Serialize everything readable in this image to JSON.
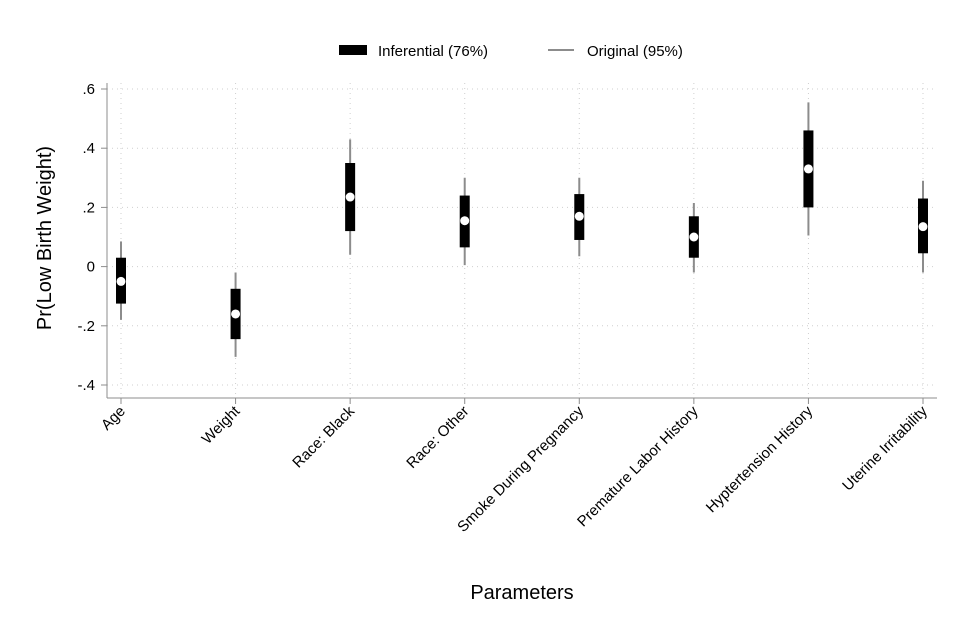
{
  "chart_data": {
    "type": "interval",
    "categories": [
      "Age",
      "Weight",
      "Race: Black",
      "Race: Other",
      "Smoke During Pregnancy",
      "Premature Labor History",
      "Hyptertension History",
      "Uterine Irritability"
    ],
    "point": [
      -0.05,
      -0.16,
      0.235,
      0.155,
      0.17,
      0.1,
      0.33,
      0.135
    ],
    "series": [
      {
        "name": "Inferential (76%)",
        "lower": [
          -0.125,
          -0.245,
          0.12,
          0.065,
          0.09,
          0.03,
          0.2,
          0.045
        ],
        "upper": [
          0.03,
          -0.075,
          0.35,
          0.24,
          0.245,
          0.17,
          0.46,
          0.23
        ]
      },
      {
        "name": "Original (95%)",
        "lower": [
          -0.18,
          -0.305,
          0.04,
          0.005,
          0.035,
          -0.02,
          0.105,
          -0.02
        ],
        "upper": [
          0.085,
          -0.02,
          0.43,
          0.3,
          0.3,
          0.215,
          0.555,
          0.29
        ]
      }
    ],
    "xlabel": "Parameters",
    "ylabel": "Pr(Low Birth Weight)",
    "ylim": [
      -0.4,
      0.6
    ],
    "yticks": [
      -0.4,
      -0.2,
      0,
      0.2,
      0.4,
      0.6
    ],
    "ytick_labels": [
      "-.4",
      "-.2",
      "0",
      ".2",
      ".4",
      ".6"
    ],
    "grid": true,
    "legend_position": "top",
    "colors": {
      "inferential": "#000000",
      "original": "#8c8c8c",
      "point": "#ffffff"
    }
  }
}
